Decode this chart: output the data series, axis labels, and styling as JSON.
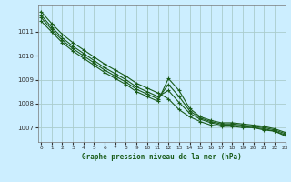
{
  "title": "Graphe pression niveau de la mer (hPa)",
  "bg_color": "#cceeff",
  "grid_color": "#aacccc",
  "line_color": "#1a5c1a",
  "xlim": [
    -0.3,
    23
  ],
  "ylim": [
    1006.4,
    1012.1
  ],
  "yticks": [
    1007,
    1008,
    1009,
    1010,
    1011
  ],
  "xticks": [
    0,
    1,
    2,
    3,
    4,
    5,
    6,
    7,
    8,
    9,
    10,
    11,
    12,
    13,
    14,
    15,
    16,
    17,
    18,
    19,
    20,
    21,
    22,
    23
  ],
  "series": [
    [
      1011.85,
      1011.35,
      1010.9,
      1010.55,
      1010.25,
      1009.95,
      1009.65,
      1009.4,
      1009.15,
      1008.85,
      1008.65,
      1008.45,
      1008.2,
      1007.75,
      1007.45,
      1007.25,
      1007.1,
      1007.05,
      1007.05,
      1007.0,
      1007.0,
      1006.9,
      1006.85,
      1006.65
    ],
    [
      1011.7,
      1011.2,
      1010.75,
      1010.4,
      1010.1,
      1009.8,
      1009.5,
      1009.25,
      1009.0,
      1008.7,
      1008.5,
      1008.3,
      1008.55,
      1008.05,
      1007.6,
      1007.35,
      1007.2,
      1007.1,
      1007.1,
      1007.05,
      1007.0,
      1006.95,
      1006.85,
      1006.7
    ],
    [
      1011.6,
      1011.1,
      1010.65,
      1010.3,
      1010.0,
      1009.7,
      1009.4,
      1009.15,
      1008.9,
      1008.6,
      1008.4,
      1008.2,
      1008.8,
      1008.3,
      1007.7,
      1007.4,
      1007.25,
      1007.15,
      1007.15,
      1007.1,
      1007.05,
      1007.0,
      1006.9,
      1006.75
    ],
    [
      1011.45,
      1011.0,
      1010.55,
      1010.2,
      1009.9,
      1009.6,
      1009.3,
      1009.05,
      1008.8,
      1008.5,
      1008.3,
      1008.1,
      1009.05,
      1008.55,
      1007.8,
      1007.45,
      1007.3,
      1007.2,
      1007.2,
      1007.15,
      1007.1,
      1007.05,
      1006.95,
      1006.8
    ]
  ]
}
